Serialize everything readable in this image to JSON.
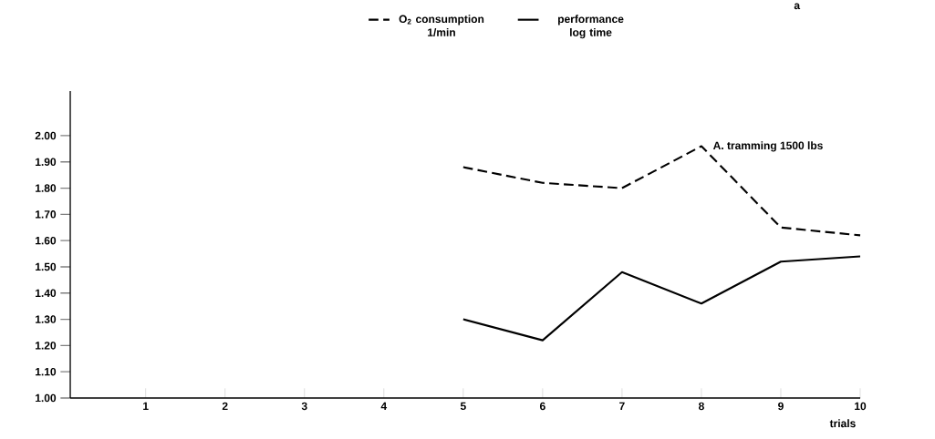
{
  "chart_data": {
    "type": "line",
    "xlabel": "trials",
    "x": [
      5,
      6,
      7,
      8,
      9,
      10
    ],
    "xlim": [
      0.05,
      10
    ],
    "xticks": [
      1,
      2,
      3,
      4,
      5,
      6,
      7,
      8,
      9,
      10
    ],
    "ylim": [
      1.0,
      2.17
    ],
    "yticks": [
      {
        "value": 1.0,
        "label": "1.00"
      },
      {
        "value": 1.1,
        "label": "1.10"
      },
      {
        "value": 1.2,
        "label": "1.20"
      },
      {
        "value": 1.3,
        "label": "1.30"
      },
      {
        "value": 1.4,
        "label": "1.40"
      },
      {
        "value": 1.5,
        "label": "1.50"
      },
      {
        "value": 1.6,
        "label": "1.60"
      },
      {
        "value": 1.7,
        "label": "1.70"
      },
      {
        "value": 1.8,
        "label": "1.80"
      },
      {
        "value": 1.9,
        "label": "1.90"
      },
      {
        "value": 2.0,
        "label": "2.00"
      }
    ],
    "series": [
      {
        "name": "O$_{2}$ consumption 1/min",
        "color": "#000000",
        "line_style": "dashed",
        "values": [
          1.88,
          1.82,
          1.8,
          1.96,
          1.65,
          1.62
        ]
      },
      {
        "name": "performance log time",
        "color": "#000000",
        "line_style": "solid",
        "values": [
          1.3,
          1.22,
          1.48,
          1.36,
          1.52,
          1.54
        ]
      }
    ],
    "annotations": [
      "a",
      {
        "text": "A. tramming 1500 lbs",
        "x": 8,
        "y": 1.96
      }
    ],
    "marker": "none",
    "grid": false,
    "legend": "top"
  }
}
